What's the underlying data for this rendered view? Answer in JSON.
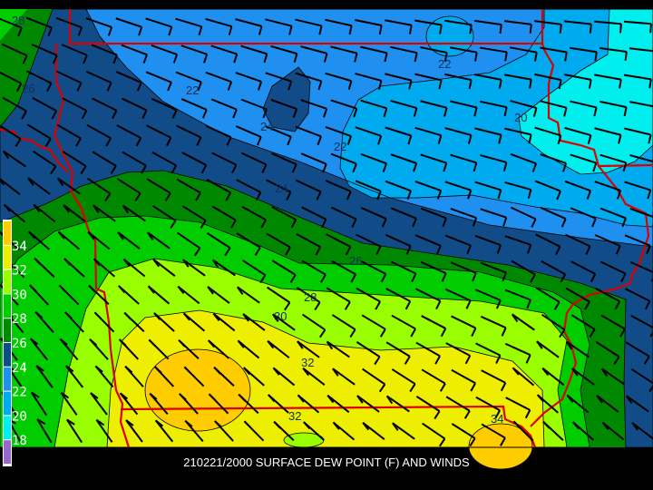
{
  "title": "210221/2000 SURFACE DEW POINT (F) AND WINDS",
  "colorbar": {
    "labels": [
      "34",
      "32",
      "30",
      "28",
      "26",
      "24",
      "22",
      "20",
      "18"
    ],
    "colors": [
      "#ffcc00",
      "#eeee00",
      "#99ff00",
      "#00cc00",
      "#008800",
      "#114c88",
      "#2090f0",
      "#00aaee",
      "#00eeee",
      "#9966cc"
    ]
  },
  "fill_colors": {
    "c34": "#ffcc00",
    "c32": "#eeee00",
    "c30": "#99ff00",
    "c28": "#00cc00",
    "c26": "#008800",
    "c24": "#114c88",
    "c22": "#2090f0",
    "c20": "#00aaee",
    "c18": "#00eeee"
  },
  "border_color": "#dd0000",
  "barb_color": "#000000",
  "contour_labels": [
    "28",
    "26",
    "22",
    "24",
    "22",
    "20",
    "22",
    "24",
    "26",
    "28",
    "30",
    "32",
    "32",
    "34"
  ]
}
